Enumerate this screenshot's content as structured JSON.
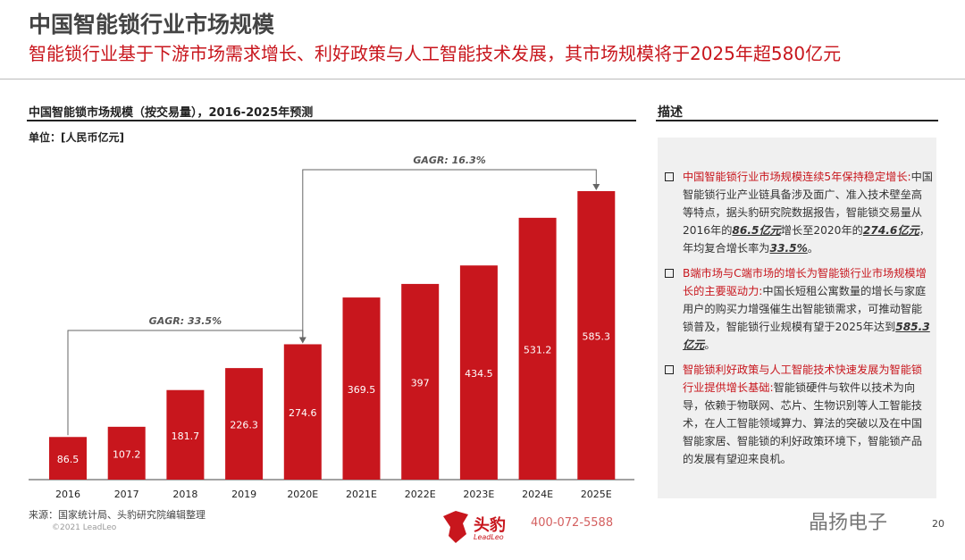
{
  "header": {
    "title": "中国智能锁行业市场规模",
    "subtitle": "智能锁行业基于下游市场需求增长、利好政策与人工智能技术发展，其市场规模将于2025年超580亿元"
  },
  "chart_data": {
    "type": "bar",
    "title": "中国智能锁市场规模（按交易量），2016-2025年预测",
    "unit": "单位：[人民币亿元]",
    "categories": [
      "2016",
      "2017",
      "2018",
      "2019",
      "2020E",
      "2021E",
      "2022E",
      "2023E",
      "2024E",
      "2025E"
    ],
    "values": [
      86.5,
      107.2,
      181.7,
      226.3,
      274.6,
      369.5,
      397,
      434.5,
      531.2,
      585.3
    ],
    "value_labels": [
      "86.5",
      "107.2",
      "181.7",
      "226.3",
      "274.6",
      "369.5",
      "397",
      "434.5",
      "531.2",
      "585.3"
    ],
    "ylim": [
      0,
      600
    ],
    "bar_color": "#c8161d",
    "annotations": [
      {
        "text": "GAGR: 33.5%",
        "from": "2016",
        "to": "2020E"
      },
      {
        "text": "GAGR: 16.3%",
        "from": "2020E",
        "to": "2025E"
      }
    ]
  },
  "description": {
    "title": "描述",
    "items": [
      {
        "head": "中国智能锁行业市场规模连续5年保持稳定增长:",
        "parts": [
          "中国智能锁行业产业链具备涉及面广、准入技术壁垒高等特点，据头豹研究院数据报告，智能锁交易量从2016年的",
          "86.5亿元",
          "增长至2020年的",
          "274.6亿元",
          "，年均复合增长率为",
          "33.5%",
          "。"
        ]
      },
      {
        "head": "B端市场与C端市场的增长为智能锁行业市场规模增长的主要驱动力:",
        "parts": [
          "中国长短租公寓数量的增长与家庭用户的购买力增强催生出智能锁需求，可推动智能锁普及，智能锁行业规模有望于2025年达到",
          "585.3亿元",
          "。"
        ]
      },
      {
        "head": "智能锁利好政策与人工智能技术快速发展为智能锁行业提供增长基础:",
        "parts": [
          "智能锁硬件与软件以技术为向导，依赖于物联网、芯片、生物识别等人工智能技术，在人工智能领域算力、算法的突破以及在中国智能家居、智能锁的利好政策环境下，智能锁产品的发展有望迎来良机。"
        ]
      }
    ]
  },
  "footer": {
    "source": "来源：国家统计局、头豹研究院编辑整理",
    "copyright": "©2021 LeadLeo",
    "brand": "头豹",
    "brand_en": "LeadLeo",
    "phone": "400-072-5588",
    "watermark": "晶扬电子",
    "page": "20"
  }
}
